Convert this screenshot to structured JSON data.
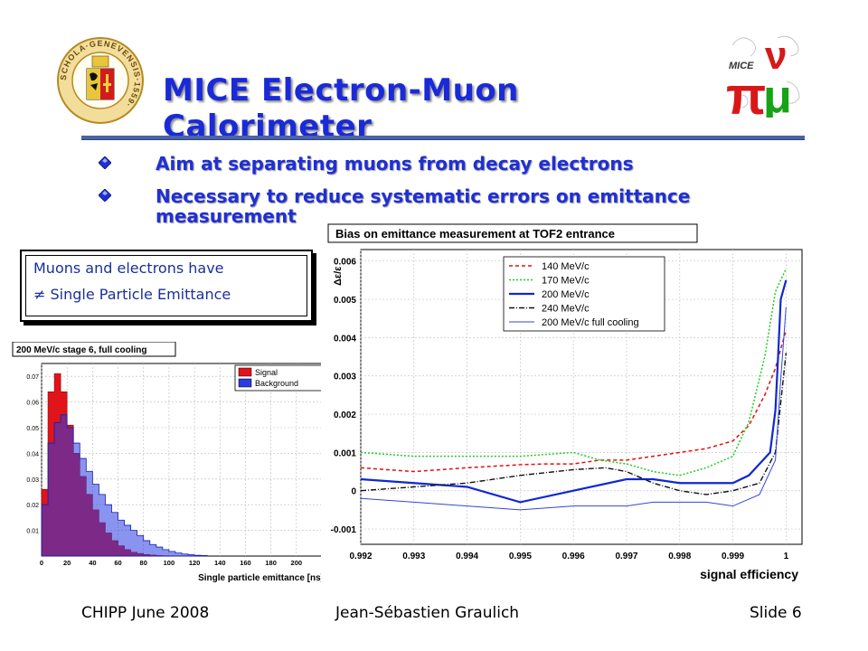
{
  "slide": {
    "title": "MICE Electron-Muon Calorimeter",
    "bullets": [
      {
        "text": "Aim at separating muons from decay electrons"
      },
      {
        "text": "Necessary to reduce systematic errors on emittance measurement"
      }
    ],
    "callout": {
      "line1": "Muons and electrons have",
      "line2": "≠ Single Particle Emittance"
    },
    "footer": {
      "left": "CHIPP June 2008",
      "center": "Jean-Sébastien Graulich",
      "right": "Slide 6"
    },
    "logos": {
      "left": "university-of-geneva-seal",
      "left_lettering": "SCHOLA GENEVENSIS 1559",
      "right": "mice-logo",
      "right_lettering": "MICE"
    },
    "colors": {
      "title": "#1a2ad8",
      "bullet": "#1f2fd6",
      "callout_text": "#1b2f9c",
      "rule": "#4a63a8"
    }
  },
  "chart_data": [
    {
      "type": "histogram",
      "title": "200 MeV/c stage 6, full cooling",
      "xlabel": "Single particle emittance [ns]",
      "ylabel": "",
      "xlim": [
        0,
        220
      ],
      "ylim": [
        0,
        0.075
      ],
      "x_ticks": [
        0,
        20,
        40,
        60,
        80,
        100,
        120,
        140,
        160,
        180,
        200
      ],
      "y_ticks": [
        0.01,
        0.02,
        0.03,
        0.04,
        0.05,
        0.06,
        0.07
      ],
      "y_tick_labels": [
        "0.01",
        "0.02",
        "0.03",
        "0.04",
        "0.05",
        "0.06",
        "0.07"
      ],
      "legend_position": "top-right",
      "grid": true,
      "bin_edges": [
        0,
        5,
        10,
        15,
        20,
        25,
        30,
        35,
        40,
        45,
        50,
        55,
        60,
        65,
        70,
        75,
        80,
        85,
        90,
        95,
        100,
        105,
        110,
        115,
        120,
        125,
        130
      ],
      "series": [
        {
          "name": "Signal",
          "color": "#e0141b",
          "values": [
            0.026,
            0.064,
            0.071,
            0.064,
            0.051,
            0.04,
            0.031,
            0.024,
            0.018,
            0.013,
            0.009,
            0.006,
            0.004,
            0.0025,
            0.0015,
            0.001,
            0.0006,
            0.0004,
            0.0002,
            0.0001,
            0,
            0,
            0,
            0,
            0,
            0
          ]
        },
        {
          "name": "Background",
          "color": "#2a3be0",
          "values": [
            0.02,
            0.044,
            0.052,
            0.055,
            0.05,
            0.044,
            0.038,
            0.033,
            0.028,
            0.024,
            0.02,
            0.017,
            0.014,
            0.012,
            0.01,
            0.008,
            0.006,
            0.0045,
            0.0035,
            0.0025,
            0.0018,
            0.0012,
            0.0008,
            0.0005,
            0.0003,
            0.0002
          ]
        }
      ]
    },
    {
      "type": "line",
      "title": "Bias on emittance measurement at TOF2 entrance",
      "xlabel": "signal efficiency",
      "ylabel": "Δε/ε",
      "xlim": [
        0.992,
        1.0003
      ],
      "ylim": [
        -0.0014,
        0.0063
      ],
      "x_ticks": [
        0.992,
        0.993,
        0.994,
        0.995,
        0.996,
        0.997,
        0.998,
        0.999,
        1
      ],
      "x_tick_labels": [
        "0.992",
        "0.993",
        "0.994",
        "0.995",
        "0.996",
        "0.997",
        "0.998",
        "0.999",
        "1"
      ],
      "y_ticks": [
        -0.001,
        0,
        0.001,
        0.002,
        0.003,
        0.004,
        0.005,
        0.006
      ],
      "y_tick_labels": [
        "-0.001",
        "0",
        "0.001",
        "0.002",
        "0.003",
        "0.004",
        "0.005",
        "0.006"
      ],
      "legend_position": "top-left",
      "grid": true,
      "series": [
        {
          "name": "140 MeV/c",
          "color": "#e01010",
          "dash": "4,3",
          "width": 1.5,
          "x": [
            0.992,
            0.993,
            0.994,
            0.995,
            0.9955,
            0.996,
            0.9965,
            0.997,
            0.9975,
            0.998,
            0.9985,
            0.999,
            0.9993,
            0.9996,
            0.9998,
            1
          ],
          "y": [
            0.0006,
            0.0005,
            0.0006,
            0.00068,
            0.0007,
            0.0007,
            0.0008,
            0.0008,
            0.0009,
            0.001,
            0.0011,
            0.0013,
            0.0017,
            0.0025,
            0.0032,
            0.0042
          ]
        },
        {
          "name": "170 MeV/c",
          "color": "#22cc22",
          "dash": "2,2",
          "width": 1.5,
          "x": [
            0.992,
            0.993,
            0.994,
            0.995,
            0.996,
            0.9965,
            0.997,
            0.9975,
            0.998,
            0.9985,
            0.999,
            0.9993,
            0.9996,
            0.9998,
            1
          ],
          "y": [
            0.001,
            0.0009,
            0.0009,
            0.0009,
            0.001,
            0.0008,
            0.0007,
            0.0005,
            0.0004,
            0.0006,
            0.0009,
            0.0018,
            0.0035,
            0.0052,
            0.0058
          ]
        },
        {
          "name": "200 MeV/c",
          "color": "#1028d0",
          "dash": "",
          "width": 2.2,
          "x": [
            0.992,
            0.993,
            0.994,
            0.995,
            0.996,
            0.997,
            0.9975,
            0.998,
            0.9985,
            0.999,
            0.9993,
            0.9995,
            0.9997,
            0.9998,
            0.99985,
            0.9999,
            1
          ],
          "y": [
            0.0003,
            0.0002,
            0.0001,
            -0.0003,
            0.0,
            0.0003,
            0.0003,
            0.0002,
            0.0002,
            0.0002,
            0.0004,
            0.0007,
            0.001,
            0.0021,
            0.0035,
            0.005,
            0.0055
          ]
        },
        {
          "name": "240 MeV/c",
          "color": "#111111",
          "dash": "6,2,1,2",
          "width": 1.4,
          "x": [
            0.992,
            0.993,
            0.994,
            0.995,
            0.996,
            0.9966,
            0.997,
            0.9975,
            0.998,
            0.9985,
            0.999,
            0.9995,
            0.9998,
            1
          ],
          "y": [
            0.0,
            0.0001,
            0.0002,
            0.0004,
            0.00055,
            0.0006,
            0.0005,
            0.0002,
            0.0,
            -0.0001,
            0.0,
            0.0002,
            0.001,
            0.0036
          ]
        },
        {
          "name": "200 MeV/c full cooling",
          "color": "#3344dd",
          "dash": "",
          "width": 1.0,
          "x": [
            0.992,
            0.993,
            0.994,
            0.995,
            0.996,
            0.997,
            0.9975,
            0.998,
            0.9985,
            0.999,
            0.9995,
            0.9998,
            0.9999,
            1
          ],
          "y": [
            -0.0002,
            -0.0003,
            -0.0004,
            -0.0005,
            -0.0004,
            -0.0004,
            -0.0003,
            -0.0003,
            -0.0003,
            -0.0004,
            -0.0001,
            0.0008,
            0.0029,
            0.0048
          ]
        }
      ]
    }
  ]
}
